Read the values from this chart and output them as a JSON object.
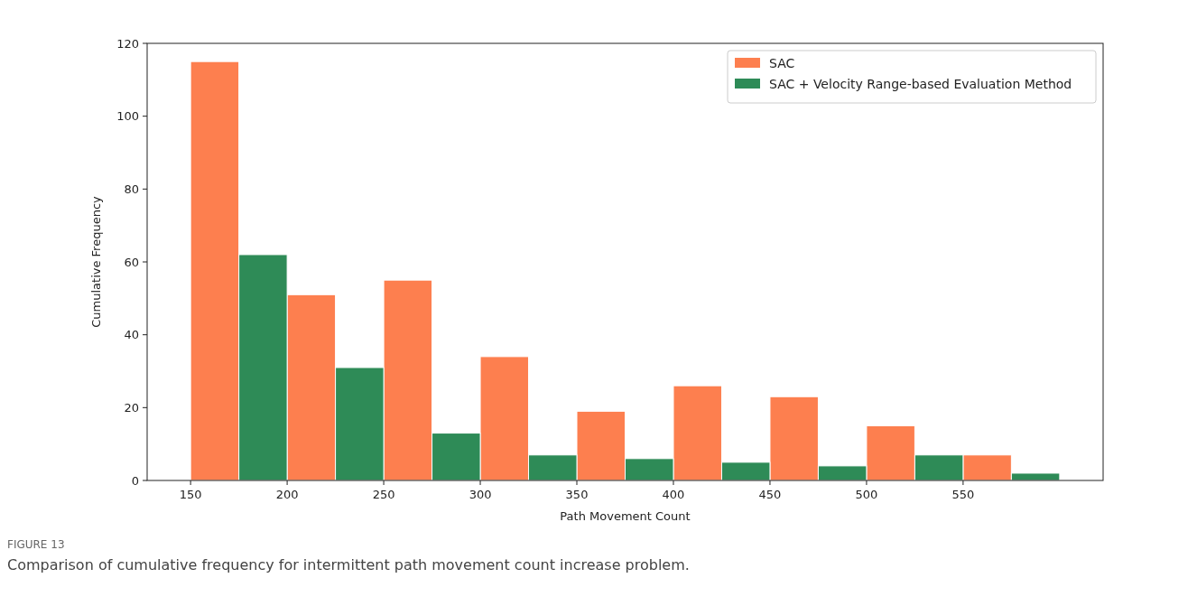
{
  "chart_data": {
    "type": "histogram",
    "xlabel": "Path Movement Count",
    "ylabel": "Cumulative Frequency",
    "bins": [
      150,
      200,
      250,
      300,
      350,
      400,
      450,
      500,
      550,
      600
    ],
    "series": [
      {
        "name": "SAC",
        "color": "#fd7f4f",
        "values": [
          115,
          51,
          55,
          34,
          19,
          26,
          23,
          15,
          7
        ]
      },
      {
        "name": "SAC + Velocity Range-based Evaluation Method",
        "color": "#2e8b57",
        "values": [
          62,
          31,
          13,
          7,
          6,
          5,
          4,
          7,
          2
        ]
      }
    ],
    "xlim": [
      127.5,
      622.5
    ],
    "xticks": [
      150,
      200,
      250,
      300,
      350,
      400,
      450,
      500,
      550
    ],
    "ylim": [
      0,
      120
    ],
    "yticks": [
      0,
      20,
      40,
      60,
      80,
      100,
      120
    ],
    "grid": false,
    "legend": "top right",
    "annotations": [
      "FIGURE 13",
      "Comparison of cumulative frequency for intermittent path movement count increase problem."
    ]
  }
}
